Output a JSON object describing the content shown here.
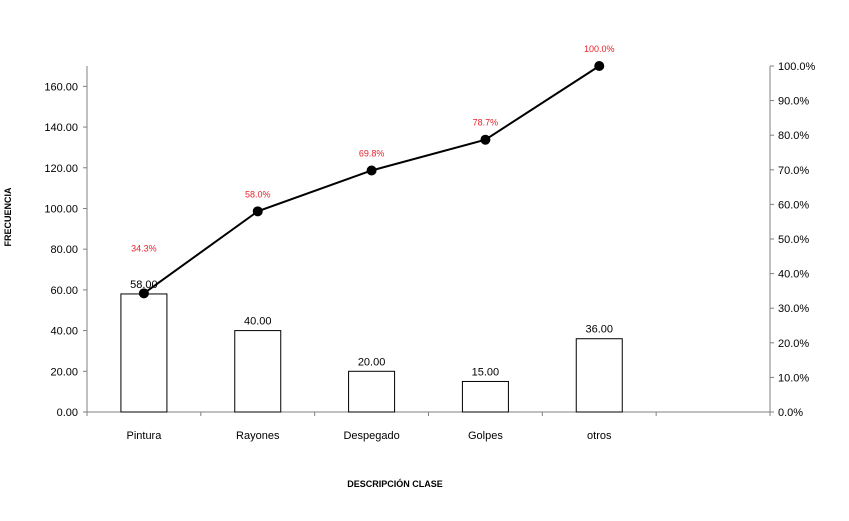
{
  "chart_data": {
    "type": "bar",
    "title": "",
    "xlabel": "DESCRIPCIÓN CLASE",
    "ylabel": "FRECUENCIA",
    "categories": [
      "Pintura",
      "Rayones",
      "Despegado",
      "Golpes",
      "otros"
    ],
    "series": [
      {
        "type": "bar",
        "values": [
          58,
          40,
          20,
          15,
          36
        ],
        "labels": [
          "58.00",
          "40.00",
          "20.00",
          "15.00",
          "36.00"
        ]
      },
      {
        "type": "line",
        "axis": "secondary",
        "values": [
          34.3,
          58.0,
          69.8,
          78.7,
          100.0
        ],
        "labels": [
          "34.3%",
          "58.0%",
          "69.8%",
          "78.7%",
          "100.0%"
        ]
      }
    ],
    "ylim": [
      0,
      170
    ],
    "y_ticks": [
      "0.00",
      "20.00",
      "40.00",
      "60.00",
      "80.00",
      "100.00",
      "120.00",
      "140.00",
      "160.00"
    ],
    "y2lim": [
      0,
      100
    ],
    "y2_ticks": [
      "0.0%",
      "10.0%",
      "20.0%",
      "30.0%",
      "40.0%",
      "50.0%",
      "60.0%",
      "70.0%",
      "80.0%",
      "90.0%",
      "100.0%"
    ],
    "grid": false,
    "legend": "none",
    "colors": {
      "bar_fill": "#ffffff",
      "bar_stroke": "#000000",
      "line": "#000000",
      "pct_label": "#e8202a"
    }
  }
}
